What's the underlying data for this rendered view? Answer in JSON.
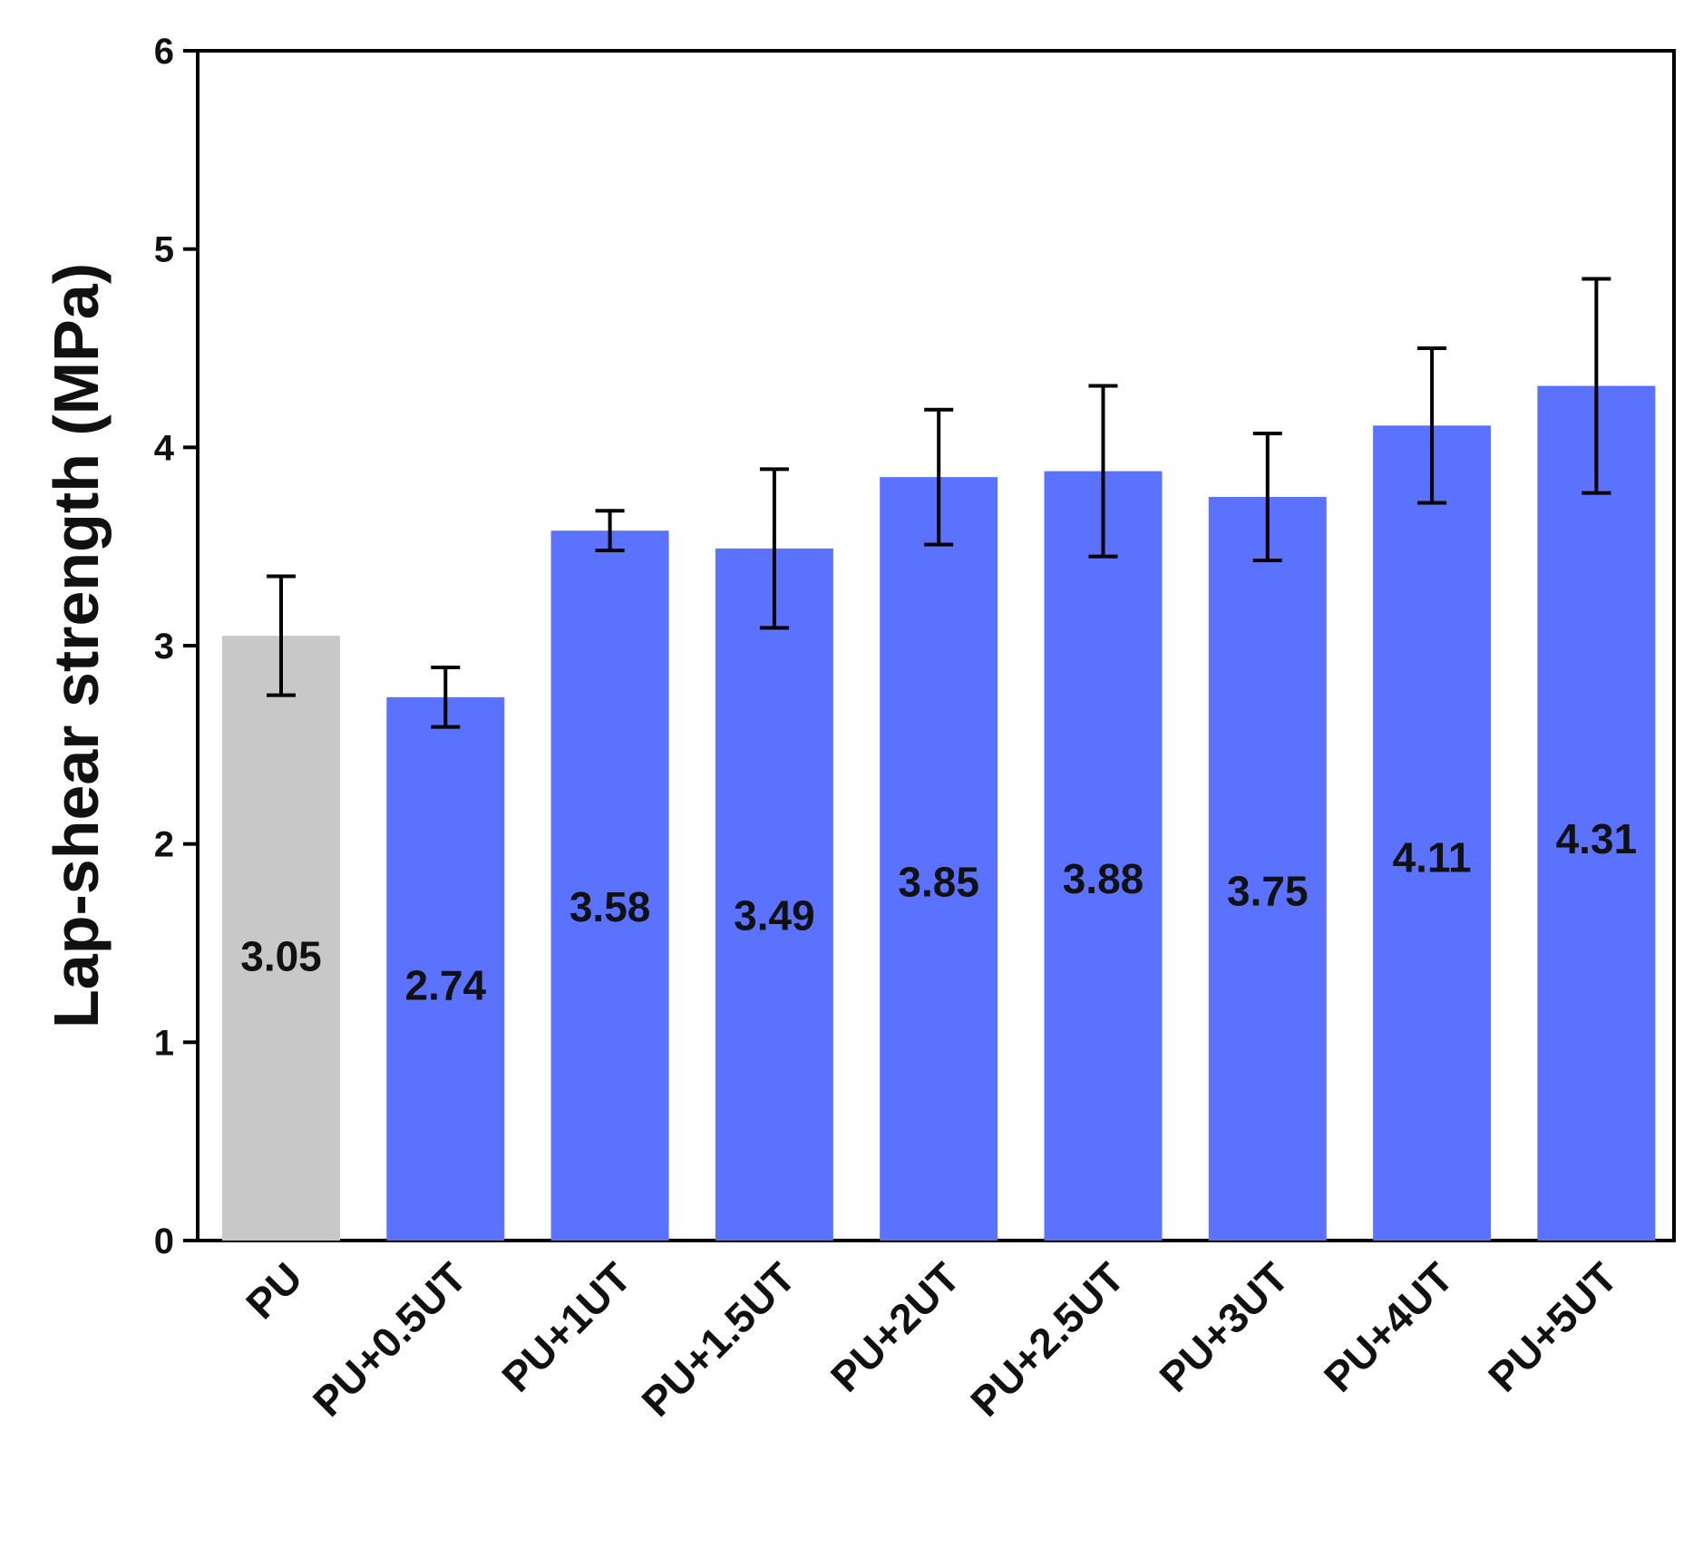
{
  "chart_data": {
    "type": "bar",
    "title": "",
    "xlabel": "",
    "ylabel": "Lap-shear strength (MPa)",
    "ylim": [
      0,
      6
    ],
    "yticks": [
      "0",
      "1",
      "2",
      "3",
      "4",
      "5",
      "6"
    ],
    "categories": [
      "PU",
      "PU+0.5UT",
      "PU+1UT",
      "PU+1.5UT",
      "PU+2UT",
      "PU+2.5UT",
      "PU+3UT",
      "PU+4UT",
      "PU+5UT"
    ],
    "values": [
      3.05,
      2.74,
      3.58,
      3.49,
      3.85,
      3.88,
      3.75,
      4.11,
      4.31
    ],
    "value_labels": [
      "3.05",
      "2.74",
      "3.58",
      "3.49",
      "3.85",
      "3.88",
      "3.75",
      "4.11",
      "4.31"
    ],
    "error_low": [
      2.75,
      2.59,
      3.48,
      3.09,
      3.51,
      3.45,
      3.43,
      3.72,
      3.77
    ],
    "error_high": [
      3.35,
      2.89,
      3.68,
      3.89,
      4.19,
      4.31,
      4.07,
      4.5,
      4.85
    ],
    "bar_colors": [
      "#c8c8c8",
      "#5b72ff",
      "#5b72ff",
      "#5b72ff",
      "#5b72ff",
      "#5b72ff",
      "#5b72ff",
      "#5b72ff",
      "#5b72ff"
    ],
    "grid": false,
    "legend": "none"
  }
}
